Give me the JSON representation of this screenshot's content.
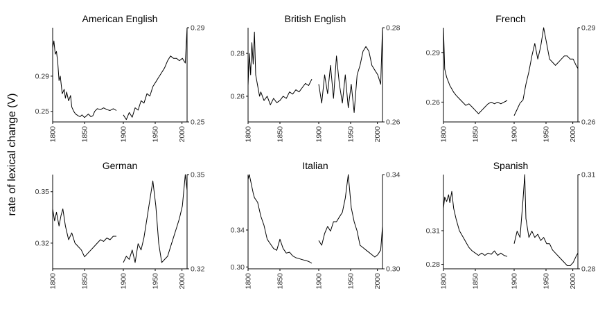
{
  "figure": {
    "ylabel": "rate of lexical change (V)"
  },
  "chart_data": [
    {
      "type": "line",
      "title": "American English",
      "left": {
        "x": [
          1800,
          1802,
          1804,
          1806,
          1808,
          1810,
          1812,
          1815,
          1818,
          1820,
          1822,
          1825,
          1828,
          1830,
          1833,
          1836,
          1840,
          1843,
          1846,
          1850,
          1853,
          1856,
          1860,
          1863,
          1866,
          1870,
          1875,
          1880,
          1885,
          1890,
          1895,
          1900
        ],
        "y": [
          0.322,
          0.33,
          0.315,
          0.318,
          0.305,
          0.285,
          0.29,
          0.27,
          0.275,
          0.265,
          0.272,
          0.262,
          0.268,
          0.255,
          0.25,
          0.247,
          0.245,
          0.244,
          0.246,
          0.243,
          0.245,
          0.247,
          0.244,
          0.245,
          0.25,
          0.253,
          0.252,
          0.254,
          0.252,
          0.251,
          0.253,
          0.251
        ],
        "ylim": [
          0.238,
          0.345
        ],
        "yticks": [
          0.25,
          0.29
        ]
      },
      "right": {
        "x": [
          1900,
          1905,
          1910,
          1915,
          1920,
          1925,
          1930,
          1935,
          1940,
          1945,
          1950,
          1955,
          1960,
          1965,
          1970,
          1975,
          1980,
          1985,
          1990,
          1995,
          2000,
          2005,
          2008
        ],
        "y": [
          0.253,
          0.251,
          0.254,
          0.252,
          0.256,
          0.255,
          0.259,
          0.258,
          0.262,
          0.261,
          0.265,
          0.267,
          0.269,
          0.271,
          0.273,
          0.276,
          0.278,
          0.277,
          0.277,
          0.276,
          0.277,
          0.275,
          0.29
        ],
        "ylim": [
          0.25,
          0.29
        ],
        "yticks": [
          0.25,
          0.29
        ]
      }
    },
    {
      "type": "line",
      "title": "British English",
      "left": {
        "x": [
          1800,
          1802,
          1804,
          1806,
          1808,
          1810,
          1812,
          1815,
          1818,
          1820,
          1825,
          1830,
          1835,
          1840,
          1845,
          1850,
          1855,
          1860,
          1865,
          1870,
          1875,
          1880,
          1885,
          1890,
          1895,
          1900
        ],
        "y": [
          0.265,
          0.28,
          0.27,
          0.285,
          0.275,
          0.29,
          0.27,
          0.265,
          0.26,
          0.262,
          0.258,
          0.26,
          0.256,
          0.259,
          0.257,
          0.258,
          0.26,
          0.259,
          0.262,
          0.261,
          0.263,
          0.262,
          0.264,
          0.266,
          0.265,
          0.268
        ],
        "ylim": [
          0.248,
          0.292
        ],
        "yticks": [
          0.26,
          0.28
        ]
      },
      "right": {
        "x": [
          1900,
          1905,
          1910,
          1915,
          1920,
          1925,
          1930,
          1935,
          1940,
          1945,
          1950,
          1955,
          1960,
          1965,
          1970,
          1975,
          1980,
          1985,
          1990,
          1995,
          2000,
          2005,
          2008
        ],
        "y": [
          0.268,
          0.264,
          0.27,
          0.266,
          0.272,
          0.265,
          0.274,
          0.268,
          0.264,
          0.27,
          0.263,
          0.268,
          0.262,
          0.27,
          0.272,
          0.275,
          0.276,
          0.275,
          0.272,
          0.271,
          0.27,
          0.268,
          0.28
        ],
        "ylim": [
          0.26,
          0.28
        ],
        "yticks": [
          0.26,
          0.28
        ]
      }
    },
    {
      "type": "line",
      "title": "French",
      "left": {
        "x": [
          1800,
          1802,
          1805,
          1808,
          1810,
          1813,
          1816,
          1820,
          1825,
          1830,
          1835,
          1840,
          1845,
          1850,
          1855,
          1860,
          1865,
          1870,
          1875,
          1880,
          1885,
          1890,
          1895,
          1900
        ],
        "y": [
          0.305,
          0.28,
          0.275,
          0.272,
          0.27,
          0.268,
          0.266,
          0.264,
          0.262,
          0.26,
          0.258,
          0.259,
          0.257,
          0.255,
          0.253,
          0.255,
          0.257,
          0.259,
          0.26,
          0.259,
          0.26,
          0.259,
          0.26,
          0.261
        ],
        "ylim": [
          0.248,
          0.305
        ],
        "yticks": [
          0.26,
          0.29
        ]
      },
      "right": {
        "x": [
          1900,
          1905,
          1910,
          1915,
          1920,
          1925,
          1930,
          1935,
          1940,
          1945,
          1950,
          1955,
          1960,
          1965,
          1970,
          1975,
          1980,
          1985,
          1990,
          1995,
          2000,
          2005,
          2008
        ],
        "y": [
          0.262,
          0.264,
          0.266,
          0.267,
          0.272,
          0.276,
          0.281,
          0.285,
          0.28,
          0.284,
          0.29,
          0.285,
          0.28,
          0.279,
          0.278,
          0.279,
          0.28,
          0.281,
          0.281,
          0.28,
          0.28,
          0.278,
          0.277
        ],
        "ylim": [
          0.26,
          0.29
        ],
        "yticks": [
          0.26,
          0.29
        ]
      }
    },
    {
      "type": "line",
      "title": "German",
      "left": {
        "x": [
          1800,
          1803,
          1806,
          1810,
          1813,
          1816,
          1820,
          1825,
          1830,
          1835,
          1840,
          1845,
          1850,
          1855,
          1860,
          1865,
          1870,
          1875,
          1880,
          1885,
          1890,
          1895,
          1900
        ],
        "y": [
          0.34,
          0.333,
          0.338,
          0.33,
          0.336,
          0.34,
          0.33,
          0.322,
          0.326,
          0.32,
          0.318,
          0.316,
          0.312,
          0.314,
          0.316,
          0.318,
          0.32,
          0.322,
          0.321,
          0.323,
          0.322,
          0.324,
          0.324
        ],
        "ylim": [
          0.305,
          0.36
        ],
        "yticks": [
          0.32,
          0.35
        ]
      },
      "right": {
        "x": [
          1900,
          1905,
          1910,
          1915,
          1920,
          1925,
          1930,
          1935,
          1940,
          1945,
          1950,
          1955,
          1960,
          1965,
          1970,
          1975,
          1980,
          1985,
          1990,
          1995,
          2000,
          2005,
          2008
        ],
        "y": [
          0.322,
          0.324,
          0.323,
          0.326,
          0.322,
          0.328,
          0.326,
          0.33,
          0.336,
          0.342,
          0.348,
          0.34,
          0.328,
          0.322,
          0.323,
          0.324,
          0.327,
          0.33,
          0.333,
          0.336,
          0.34,
          0.35,
          0.345
        ],
        "ylim": [
          0.32,
          0.35
        ],
        "yticks": [
          0.32,
          0.35
        ]
      }
    },
    {
      "type": "line",
      "title": "Italian",
      "left": {
        "x": [
          1800,
          1802,
          1805,
          1808,
          1810,
          1815,
          1820,
          1825,
          1830,
          1835,
          1840,
          1845,
          1850,
          1855,
          1860,
          1865,
          1870,
          1875,
          1880,
          1885,
          1890,
          1895,
          1900
        ],
        "y": [
          0.395,
          0.4,
          0.39,
          0.38,
          0.375,
          0.37,
          0.355,
          0.345,
          0.33,
          0.325,
          0.32,
          0.318,
          0.33,
          0.32,
          0.315,
          0.316,
          0.312,
          0.31,
          0.309,
          0.308,
          0.307,
          0.306,
          0.304
        ],
        "ylim": [
          0.298,
          0.4
        ],
        "yticks": [
          0.3,
          0.34
        ]
      },
      "right": {
        "x": [
          1900,
          1905,
          1910,
          1915,
          1920,
          1925,
          1930,
          1935,
          1940,
          1945,
          1950,
          1955,
          1960,
          1965,
          1970,
          1975,
          1980,
          1985,
          1990,
          1995,
          2000,
          2005,
          2008
        ],
        "y": [
          0.312,
          0.31,
          0.315,
          0.318,
          0.316,
          0.32,
          0.32,
          0.322,
          0.324,
          0.33,
          0.34,
          0.326,
          0.32,
          0.316,
          0.31,
          0.309,
          0.308,
          0.307,
          0.306,
          0.305,
          0.306,
          0.308,
          0.318
        ],
        "ylim": [
          0.3,
          0.34
        ],
        "yticks": [
          0.3,
          0.34
        ]
      }
    },
    {
      "type": "line",
      "title": "Spanish",
      "left": {
        "x": [
          1800,
          1802,
          1805,
          1808,
          1810,
          1813,
          1816,
          1820,
          1825,
          1830,
          1835,
          1840,
          1845,
          1850,
          1855,
          1860,
          1865,
          1870,
          1875,
          1880,
          1885,
          1890,
          1895,
          1900
        ],
        "y": [
          0.33,
          0.34,
          0.336,
          0.342,
          0.335,
          0.345,
          0.33,
          0.32,
          0.31,
          0.305,
          0.3,
          0.295,
          0.292,
          0.29,
          0.288,
          0.29,
          0.288,
          0.29,
          0.289,
          0.292,
          0.288,
          0.29,
          0.288,
          0.287
        ],
        "ylim": [
          0.276,
          0.36
        ],
        "yticks": [
          0.28,
          0.31
        ]
      },
      "right": {
        "x": [
          1900,
          1905,
          1910,
          1915,
          1918,
          1920,
          1925,
          1930,
          1935,
          1940,
          1945,
          1950,
          1955,
          1960,
          1965,
          1970,
          1975,
          1980,
          1985,
          1990,
          1995,
          2000,
          2005,
          2008
        ],
        "y": [
          0.288,
          0.292,
          0.29,
          0.302,
          0.31,
          0.296,
          0.29,
          0.292,
          0.29,
          0.291,
          0.289,
          0.29,
          0.288,
          0.288,
          0.286,
          0.285,
          0.284,
          0.283,
          0.282,
          0.281,
          0.281,
          0.282,
          0.284,
          0.285
        ],
        "ylim": [
          0.28,
          0.31
        ],
        "yticks": [
          0.28,
          0.31
        ]
      }
    }
  ]
}
